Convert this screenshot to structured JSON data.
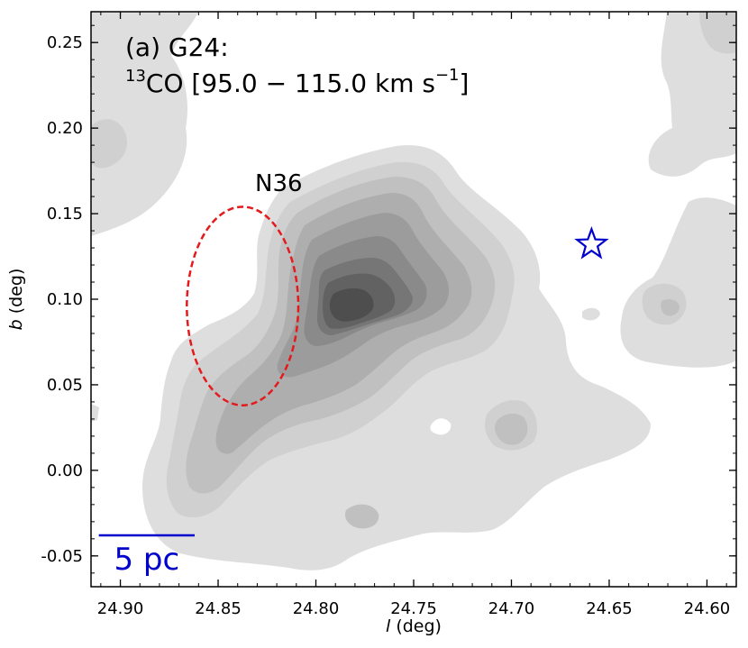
{
  "chart_data": {
    "type": "contour",
    "title_line1": "(a) G24:",
    "title_line2_sup_mass": "13",
    "title_line2_main": "CO [95.0 − 115.0 km s",
    "title_line2_sup_unit": "−1",
    "title_line2_close": "]",
    "xlabel_var": "l",
    "xlabel_unit": " (deg)",
    "ylabel_var": "b",
    "ylabel_unit": " (deg)",
    "xlim": [
      24.915,
      24.585
    ],
    "ylim": [
      -0.068,
      0.268
    ],
    "x_reversed": true,
    "x_ticks": [
      24.9,
      24.85,
      24.8,
      24.75,
      24.7,
      24.65,
      24.6
    ],
    "x_tick_labels": [
      "24.90",
      "24.85",
      "24.80",
      "24.75",
      "24.70",
      "24.65",
      "24.60"
    ],
    "y_ticks": [
      -0.05,
      0.0,
      0.05,
      0.1,
      0.15,
      0.2,
      0.25
    ],
    "y_tick_labels": [
      "-0.05",
      "0.00",
      "0.05",
      "0.10",
      "0.15",
      "0.20",
      "0.25"
    ],
    "bubble": {
      "label": "N36",
      "label_l": 24.819,
      "label_b": 0.168,
      "center_l": 24.8375,
      "center_b": 0.096,
      "half_width_l": 0.0285,
      "half_height_b": 0.058,
      "color": "#e41a1c"
    },
    "star": {
      "l": 24.659,
      "b": 0.132,
      "color": "#0000cc"
    },
    "scale_bar": {
      "label": "5 pc",
      "l_start": 24.911,
      "l_end": 24.862,
      "b": -0.038,
      "color": "#0000cc"
    },
    "contour_fill_colors": [
      "#dedede",
      "#d0d0d0",
      "#c0c0c0",
      "#aeaeae",
      "#9c9c9c",
      "#8a8a8a",
      "#767676",
      "#626262",
      "#4e4e4e"
    ],
    "peak": {
      "l": 24.789,
      "b": 0.092
    }
  }
}
